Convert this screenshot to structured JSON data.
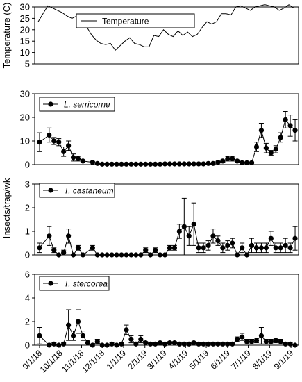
{
  "chart_data": [
    {
      "type": "line",
      "ylabel": "Temperature (C)",
      "ylim": [
        5,
        30
      ],
      "yticks": [
        5,
        10,
        15,
        20,
        25,
        30
      ],
      "legend": [
        "Temperature"
      ],
      "legend_position": "top-left",
      "x_range": [
        "2018-08-25",
        "2019-09-12"
      ],
      "series": [
        {
          "name": "Temperature",
          "x": [
            "2018-08-30",
            "2018-09-06",
            "2018-09-13",
            "2018-09-20",
            "2018-09-27",
            "2018-10-04",
            "2018-10-11",
            "2018-10-18",
            "2018-10-25",
            "2018-11-01",
            "2018-11-08",
            "2018-11-15",
            "2018-11-22",
            "2018-11-29",
            "2018-12-06",
            "2018-12-13",
            "2018-12-20",
            "2018-12-27",
            "2019-01-03",
            "2019-01-10",
            "2019-01-17",
            "2019-01-24",
            "2019-01-31",
            "2019-02-07",
            "2019-02-14",
            "2019-02-21",
            "2019-02-28",
            "2019-03-07",
            "2019-03-14",
            "2019-03-21",
            "2019-03-28",
            "2019-04-04",
            "2019-04-11",
            "2019-04-18",
            "2019-04-25",
            "2019-05-02",
            "2019-05-09",
            "2019-05-16",
            "2019-05-23",
            "2019-05-30",
            "2019-06-06",
            "2019-06-13",
            "2019-06-20",
            "2019-06-27",
            "2019-07-04",
            "2019-07-11",
            "2019-07-18",
            "2019-07-25",
            "2019-08-01",
            "2019-08-08",
            "2019-08-15",
            "2019-08-22",
            "2019-08-29",
            "2019-09-05"
          ],
          "values": [
            23.5,
            27,
            30.5,
            29.5,
            28.5,
            27.5,
            26,
            25,
            26,
            21,
            21.5,
            18,
            15.5,
            14,
            13.5,
            14,
            11,
            13,
            15,
            16.5,
            14,
            13.5,
            12.5,
            12.5,
            17.5,
            17,
            20,
            18,
            17,
            19.5,
            17.5,
            19,
            17,
            18,
            21,
            23.5,
            22.5,
            23.5,
            27,
            27,
            26.5,
            30,
            30.5,
            29.5,
            28.5,
            30,
            30.5,
            31,
            30.5,
            30,
            28.5,
            29.5,
            31,
            29.5
          ]
        }
      ]
    },
    {
      "type": "line",
      "ylim": [
        0,
        30
      ],
      "yticks": [
        0,
        10,
        20,
        30
      ],
      "legend": [
        "L. serricorne"
      ],
      "legend_position": "top-left",
      "x_range": [
        "2018-08-25",
        "2019-09-12"
      ],
      "series": [
        {
          "name": "L. serricorne",
          "x": [
            "2018-09-01",
            "2018-09-15",
            "2018-09-22",
            "2018-09-29",
            "2018-10-06",
            "2018-10-13",
            "2018-10-20",
            "2018-10-27",
            "2018-11-03",
            "2018-11-17",
            "2018-11-24",
            "2018-12-01",
            "2018-12-08",
            "2018-12-15",
            "2018-12-22",
            "2018-12-29",
            "2019-01-05",
            "2019-01-12",
            "2019-01-19",
            "2019-01-26",
            "2019-02-02",
            "2019-02-09",
            "2019-02-16",
            "2019-02-23",
            "2019-03-02",
            "2019-03-09",
            "2019-03-16",
            "2019-03-23",
            "2019-03-30",
            "2019-04-06",
            "2019-04-13",
            "2019-04-20",
            "2019-04-27",
            "2019-05-04",
            "2019-05-11",
            "2019-05-18",
            "2019-05-25",
            "2019-06-01",
            "2019-06-08",
            "2019-06-15",
            "2019-06-22",
            "2019-06-29",
            "2019-07-06",
            "2019-07-13",
            "2019-07-20",
            "2019-07-27",
            "2019-08-03",
            "2019-08-10",
            "2019-08-17",
            "2019-08-24",
            "2019-08-31",
            "2019-09-07"
          ],
          "values": [
            9.5,
            12.5,
            10,
            9.5,
            5.5,
            8,
            3,
            2.5,
            1.5,
            1,
            0.5,
            0.2,
            0.2,
            0.2,
            0.2,
            0.2,
            0.2,
            0.2,
            0.2,
            0.2,
            0.2,
            0.2,
            0.2,
            0.2,
            0.3,
            0.3,
            0.3,
            0.3,
            0.3,
            0.3,
            0.3,
            0.3,
            0.3,
            0.5,
            0.5,
            1,
            1.5,
            2.5,
            2.5,
            1.5,
            0.8,
            0.8,
            0.8,
            7.5,
            14.5,
            7,
            5,
            6.5,
            11.5,
            19,
            16.5,
            14.5
          ],
          "error": [
            4,
            3,
            1.5,
            1.5,
            2,
            2,
            1.5,
            1,
            0.5,
            0.3,
            0.2,
            0.1,
            0.1,
            0.1,
            0.1,
            0.1,
            0.1,
            0.1,
            0.1,
            0.1,
            0.1,
            0.1,
            0.1,
            0.1,
            0.1,
            0.1,
            0.1,
            0.1,
            0.1,
            0.1,
            0.1,
            0.1,
            0.1,
            0.2,
            0.2,
            0.4,
            0.5,
            1,
            1,
            0.5,
            0.3,
            0.3,
            0.3,
            2,
            3,
            2,
            1,
            1.5,
            2,
            3.5,
            4.5,
            4.5
          ]
        }
      ]
    },
    {
      "type": "line",
      "ylabel": "Insects/trap/wk",
      "ylim": [
        0,
        3
      ],
      "yticks": [
        0,
        1,
        2,
        3
      ],
      "legend": [
        "T. castaneum"
      ],
      "legend_position": "top-left",
      "x_range": [
        "2018-08-25",
        "2019-09-12"
      ],
      "series": [
        {
          "name": "T. castaneum",
          "x": [
            "2018-09-01",
            "2018-09-15",
            "2018-09-22",
            "2018-09-29",
            "2018-10-06",
            "2018-10-13",
            "2018-10-20",
            "2018-10-27",
            "2018-11-03",
            "2018-11-17",
            "2018-11-24",
            "2018-12-01",
            "2018-12-08",
            "2018-12-15",
            "2018-12-22",
            "2018-12-29",
            "2019-01-05",
            "2019-01-12",
            "2019-01-19",
            "2019-01-26",
            "2019-02-02",
            "2019-02-09",
            "2019-02-16",
            "2019-02-23",
            "2019-03-02",
            "2019-03-09",
            "2019-03-16",
            "2019-03-23",
            "2019-03-30",
            "2019-04-06",
            "2019-04-13",
            "2019-04-20",
            "2019-04-27",
            "2019-05-04",
            "2019-05-11",
            "2019-05-18",
            "2019-05-25",
            "2019-06-01",
            "2019-06-08",
            "2019-06-15",
            "2019-06-22",
            "2019-06-29",
            "2019-07-06",
            "2019-07-13",
            "2019-07-20",
            "2019-07-27",
            "2019-08-03",
            "2019-08-10",
            "2019-08-17",
            "2019-08-24",
            "2019-08-31",
            "2019-09-07"
          ],
          "values": [
            0.3,
            0.8,
            0.2,
            0,
            0.1,
            0.8,
            0,
            0.3,
            0,
            0.3,
            0,
            0,
            0,
            0,
            0,
            0,
            0,
            0,
            0,
            0,
            0.2,
            0,
            0.2,
            0,
            0,
            0.3,
            0.3,
            1,
            1.2,
            0.8,
            1.3,
            0.3,
            0.3,
            0.4,
            0.8,
            0.6,
            0.3,
            0.4,
            0.5,
            0,
            0.3,
            0,
            0.4,
            0.3,
            0.3,
            0.3,
            0.7,
            0.3,
            0.3,
            0.4,
            0.3,
            0.7
          ],
          "error": [
            0.2,
            0.4,
            0.1,
            0,
            0.1,
            0.3,
            0,
            0.1,
            0,
            0.1,
            0,
            0,
            0,
            0,
            0,
            0,
            0,
            0,
            0,
            0,
            0.1,
            0,
            0.1,
            0,
            0,
            0.1,
            0.1,
            0.3,
            1.2,
            0.4,
            0.9,
            0.2,
            0.2,
            0.2,
            0.3,
            0.2,
            0.2,
            0.2,
            0.2,
            0,
            0.2,
            0,
            0.3,
            0.2,
            0.2,
            0.2,
            0.3,
            0.2,
            0.2,
            0.3,
            0.2,
            0.5
          ]
        }
      ]
    },
    {
      "type": "line",
      "ylim": [
        0,
        6
      ],
      "yticks": [
        0,
        2,
        4,
        6
      ],
      "legend": [
        "T. stercorea"
      ],
      "legend_position": "top-left",
      "x_range": [
        "2018-08-25",
        "2019-09-12"
      ],
      "xtick_labels": [
        "9/1/18",
        "10/1/18",
        "11/1/18",
        "12/1/18",
        "1/1/19",
        "2/1/19",
        "3/1/19",
        "4/1/19",
        "5/1/19",
        "6/1/19",
        "7/1/19",
        "8/1/19",
        "9/1/19"
      ],
      "series": [
        {
          "name": "T. stercorea",
          "x": [
            "2018-09-01",
            "2018-09-15",
            "2018-09-22",
            "2018-09-29",
            "2018-10-06",
            "2018-10-13",
            "2018-10-20",
            "2018-10-27",
            "2018-11-03",
            "2018-11-10",
            "2018-11-17",
            "2018-11-24",
            "2018-12-01",
            "2018-12-08",
            "2018-12-15",
            "2018-12-22",
            "2018-12-29",
            "2019-01-05",
            "2019-01-12",
            "2019-01-19",
            "2019-01-26",
            "2019-02-02",
            "2019-02-09",
            "2019-02-16",
            "2019-02-23",
            "2019-03-02",
            "2019-03-09",
            "2019-03-16",
            "2019-03-23",
            "2019-03-30",
            "2019-04-06",
            "2019-04-13",
            "2019-04-20",
            "2019-04-27",
            "2019-05-04",
            "2019-05-11",
            "2019-05-18",
            "2019-05-25",
            "2019-06-01",
            "2019-06-08",
            "2019-06-15",
            "2019-06-22",
            "2019-06-29",
            "2019-07-06",
            "2019-07-13",
            "2019-07-20",
            "2019-07-27",
            "2019-08-03",
            "2019-08-10",
            "2019-08-17",
            "2019-08-24",
            "2019-08-31",
            "2019-09-07"
          ],
          "values": [
            0.8,
            0,
            0.1,
            0,
            0.1,
            1.7,
            0.8,
            2,
            0.8,
            0.2,
            0,
            0.3,
            0,
            0,
            0.1,
            0,
            0.1,
            1.3,
            0.5,
            0.1,
            0.5,
            0.2,
            0.1,
            0.1,
            0.2,
            0.1,
            0.2,
            0.2,
            0.1,
            0.1,
            0.1,
            0.2,
            0.1,
            0.1,
            0.1,
            0.1,
            0.1,
            0.1,
            0.1,
            0.1,
            0.5,
            0.7,
            0.3,
            0.3,
            0.4,
            0.8,
            0.3,
            0.3,
            0.4,
            0.3,
            0.1,
            0.1,
            0
          ],
          "error": [
            0.7,
            0,
            0.1,
            0,
            0.1,
            1.3,
            0.4,
            1,
            0.4,
            0.2,
            0,
            0.2,
            0,
            0,
            0.1,
            0,
            0.1,
            0.4,
            0.3,
            0.1,
            0.3,
            0.1,
            0.1,
            0.1,
            0.1,
            0.1,
            0.1,
            0.1,
            0.1,
            0.1,
            0.1,
            0.1,
            0.1,
            0.1,
            0.1,
            0.1,
            0.1,
            0.1,
            0.1,
            0.1,
            0.2,
            0.3,
            0.2,
            0.2,
            0.2,
            0.7,
            0.2,
            0.2,
            0.2,
            0.2,
            0.1,
            0.1,
            0
          ]
        }
      ]
    }
  ]
}
